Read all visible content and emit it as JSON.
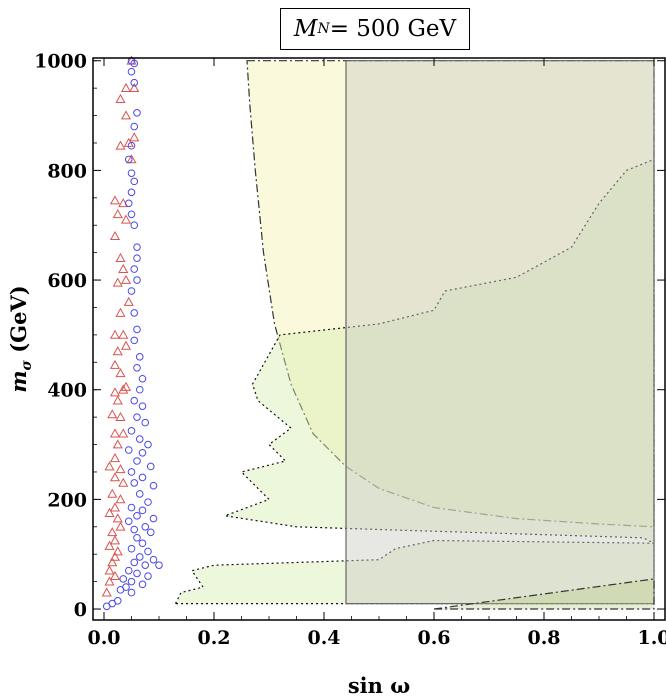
{
  "chart_data": {
    "type": "scatter",
    "title": "M_N = 500 GeV",
    "title_parts": {
      "symbol": "M",
      "subscript": "N",
      "rest": " = 500 GeV"
    },
    "xlabel": "sin ω",
    "ylabel": "m_σ (GeV)",
    "ylabel_parts": {
      "symbol": "m",
      "subscript": "σ",
      "rest": " (GeV)"
    },
    "xlim": [
      -0.02,
      1.02
    ],
    "ylim": [
      -20,
      1005
    ],
    "xticks": [
      0.0,
      0.2,
      0.4,
      0.6,
      0.8,
      1.0
    ],
    "xtick_labels": [
      "0.0",
      "0.2",
      "0.4",
      "0.6",
      "0.8",
      "1.0"
    ],
    "yticks": [
      0,
      200,
      400,
      600,
      800,
      1000
    ],
    "ytick_labels": [
      "0",
      "200",
      "400",
      "600",
      "800",
      "1000"
    ],
    "regions": [
      {
        "name": "yellow-excluded-region",
        "fill": "#f6f4c0",
        "opacity": 0.55,
        "stroke": "#333333",
        "dash": "8,3,2,3",
        "points": [
          [
            0.26,
            1000
          ],
          [
            1.0,
            1000
          ],
          [
            1.0,
            150
          ],
          [
            0.9,
            155
          ],
          [
            0.75,
            165
          ],
          [
            0.6,
            185
          ],
          [
            0.5,
            220
          ],
          [
            0.44,
            260
          ],
          [
            0.38,
            320
          ],
          [
            0.34,
            410
          ],
          [
            0.31,
            520
          ],
          [
            0.29,
            650
          ],
          [
            0.275,
            800
          ],
          [
            0.265,
            920
          ],
          [
            0.26,
            1000
          ]
        ]
      },
      {
        "name": "green-dotted-region",
        "fill": "#d8eeb0",
        "opacity": 0.45,
        "stroke": "#111111",
        "dash": "2,3",
        "points": [
          [
            0.13,
            10
          ],
          [
            0.14,
            30
          ],
          [
            0.18,
            40
          ],
          [
            0.16,
            70
          ],
          [
            0.2,
            80
          ],
          [
            0.5,
            90
          ],
          [
            0.53,
            110
          ],
          [
            0.6,
            125
          ],
          [
            1.0,
            120
          ],
          [
            0.98,
            130
          ],
          [
            0.5,
            145
          ],
          [
            0.35,
            150
          ],
          [
            0.22,
            170
          ],
          [
            0.3,
            200
          ],
          [
            0.25,
            250
          ],
          [
            0.33,
            270
          ],
          [
            0.3,
            300
          ],
          [
            0.34,
            330
          ],
          [
            0.28,
            380
          ],
          [
            0.27,
            410
          ],
          [
            0.32,
            500
          ],
          [
            0.5,
            520
          ],
          [
            0.6,
            545
          ],
          [
            0.62,
            580
          ],
          [
            0.75,
            605
          ],
          [
            0.85,
            660
          ],
          [
            0.9,
            740
          ],
          [
            0.95,
            800
          ],
          [
            1.0,
            820
          ],
          [
            1.0,
            10
          ],
          [
            0.13,
            10
          ]
        ]
      },
      {
        "name": "grey-vertical-band",
        "fill": "#c9c9c4",
        "opacity": 0.45,
        "stroke": "#666666",
        "dash": "",
        "points": [
          [
            0.44,
            10
          ],
          [
            1.0,
            10
          ],
          [
            1.0,
            1000
          ],
          [
            0.44,
            1000
          ],
          [
            0.44,
            10
          ]
        ]
      },
      {
        "name": "bottom-right-region",
        "fill": "#b8cc88",
        "opacity": 0.35,
        "stroke": "#333333",
        "dash": "8,3,2,3",
        "points": [
          [
            0.6,
            0
          ],
          [
            1.0,
            55
          ],
          [
            1.0,
            0
          ],
          [
            0.6,
            0
          ]
        ]
      }
    ],
    "series": [
      {
        "name": "triangles",
        "marker": "triangle",
        "color": "#d9534f",
        "points": [
          [
            0.05,
            1000
          ],
          [
            0.04,
            950
          ],
          [
            0.055,
            950
          ],
          [
            0.03,
            930
          ],
          [
            0.04,
            900
          ],
          [
            0.055,
            860
          ],
          [
            0.03,
            845
          ],
          [
            0.045,
            850
          ],
          [
            0.05,
            820
          ],
          [
            0.02,
            745
          ],
          [
            0.035,
            740
          ],
          [
            0.025,
            720
          ],
          [
            0.04,
            710
          ],
          [
            0.02,
            680
          ],
          [
            0.03,
            640
          ],
          [
            0.035,
            620
          ],
          [
            0.04,
            600
          ],
          [
            0.025,
            595
          ],
          [
            0.045,
            560
          ],
          [
            0.03,
            540
          ],
          [
            0.02,
            500
          ],
          [
            0.035,
            500
          ],
          [
            0.025,
            470
          ],
          [
            0.04,
            480
          ],
          [
            0.02,
            445
          ],
          [
            0.03,
            430
          ],
          [
            0.035,
            400
          ],
          [
            0.02,
            395
          ],
          [
            0.04,
            405
          ],
          [
            0.025,
            380
          ],
          [
            0.015,
            355
          ],
          [
            0.03,
            350
          ],
          [
            0.02,
            320
          ],
          [
            0.035,
            320
          ],
          [
            0.025,
            300
          ],
          [
            0.02,
            275
          ],
          [
            0.01,
            260
          ],
          [
            0.03,
            255
          ],
          [
            0.02,
            240
          ],
          [
            0.035,
            230
          ],
          [
            0.015,
            210
          ],
          [
            0.03,
            200
          ],
          [
            0.02,
            185
          ],
          [
            0.01,
            175
          ],
          [
            0.025,
            165
          ],
          [
            0.03,
            150
          ],
          [
            0.015,
            140
          ],
          [
            0.02,
            125
          ],
          [
            0.01,
            115
          ],
          [
            0.025,
            105
          ],
          [
            0.02,
            95
          ],
          [
            0.015,
            85
          ],
          [
            0.01,
            70
          ],
          [
            0.02,
            60
          ],
          [
            0.01,
            50
          ],
          [
            0.005,
            30
          ]
        ]
      },
      {
        "name": "circles",
        "marker": "circle",
        "color": "#4a4ae8",
        "points": [
          [
            0.05,
            1000
          ],
          [
            0.055,
            995
          ],
          [
            0.05,
            980
          ],
          [
            0.055,
            960
          ],
          [
            0.06,
            905
          ],
          [
            0.055,
            880
          ],
          [
            0.05,
            845
          ],
          [
            0.045,
            820
          ],
          [
            0.05,
            795
          ],
          [
            0.055,
            780
          ],
          [
            0.05,
            760
          ],
          [
            0.045,
            740
          ],
          [
            0.05,
            720
          ],
          [
            0.055,
            700
          ],
          [
            0.06,
            660
          ],
          [
            0.06,
            640
          ],
          [
            0.055,
            620
          ],
          [
            0.06,
            600
          ],
          [
            0.05,
            580
          ],
          [
            0.055,
            540
          ],
          [
            0.06,
            510
          ],
          [
            0.055,
            490
          ],
          [
            0.065,
            460
          ],
          [
            0.06,
            440
          ],
          [
            0.07,
            420
          ],
          [
            0.065,
            400
          ],
          [
            0.055,
            380
          ],
          [
            0.07,
            370
          ],
          [
            0.06,
            350
          ],
          [
            0.075,
            340
          ],
          [
            0.05,
            325
          ],
          [
            0.065,
            310
          ],
          [
            0.08,
            300
          ],
          [
            0.045,
            290
          ],
          [
            0.07,
            285
          ],
          [
            0.06,
            270
          ],
          [
            0.085,
            260
          ],
          [
            0.05,
            250
          ],
          [
            0.07,
            240
          ],
          [
            0.055,
            230
          ],
          [
            0.09,
            225
          ],
          [
            0.065,
            210
          ],
          [
            0.08,
            195
          ],
          [
            0.05,
            185
          ],
          [
            0.07,
            180
          ],
          [
            0.06,
            170
          ],
          [
            0.09,
            165
          ],
          [
            0.045,
            160
          ],
          [
            0.075,
            150
          ],
          [
            0.055,
            145
          ],
          [
            0.085,
            140
          ],
          [
            0.06,
            130
          ],
          [
            0.07,
            120
          ],
          [
            0.05,
            110
          ],
          [
            0.08,
            105
          ],
          [
            0.065,
            95
          ],
          [
            0.09,
            90
          ],
          [
            0.055,
            85
          ],
          [
            0.075,
            80
          ],
          [
            0.1,
            80
          ],
          [
            0.045,
            70
          ],
          [
            0.06,
            65
          ],
          [
            0.08,
            60
          ],
          [
            0.035,
            55
          ],
          [
            0.05,
            50
          ],
          [
            0.07,
            45
          ],
          [
            0.04,
            40
          ],
          [
            0.03,
            35
          ],
          [
            0.05,
            30
          ],
          [
            0.025,
            15
          ],
          [
            0.015,
            10
          ],
          [
            0.005,
            5
          ]
        ]
      }
    ]
  }
}
